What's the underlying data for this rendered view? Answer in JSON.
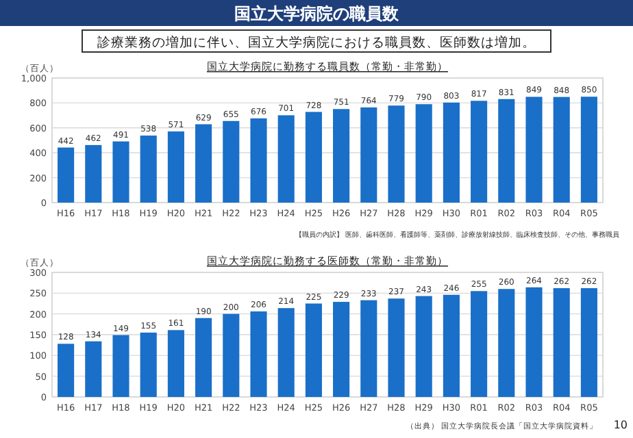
{
  "chart_data": [
    {
      "type": "bar",
      "title": "国立大学病院に勤務する職員数（常勤・非常勤）",
      "ylabel": "（百人）",
      "annotations": [
        "国立大学病院の職員数",
        "診療業務の増加に伴い、国立大学病院における職員数、医師数は増加。",
        "【職員の内訳】 医師、歯科医師、看護師等、薬剤師、診療放射線技師、臨床検査技師、その他、事務職員"
      ],
      "categories": [
        "H16",
        "H17",
        "H18",
        "H19",
        "H20",
        "H21",
        "H22",
        "H23",
        "H24",
        "H25",
        "H26",
        "H27",
        "H28",
        "H29",
        "H30",
        "R01",
        "R02",
        "R03",
        "R04",
        "R05"
      ],
      "values": [
        442,
        462,
        491,
        538,
        571,
        629,
        655,
        676,
        701,
        728,
        751,
        764,
        779,
        790,
        803,
        817,
        831,
        849,
        848,
        850
      ],
      "color": "#1a6fc8",
      "ylim": [
        0,
        1000
      ],
      "yticks": [
        0,
        200,
        400,
        600,
        800,
        {
          "value": 1000,
          "label": "1,000"
        }
      ],
      "grid": "y",
      "data_labels": true
    },
    {
      "type": "bar",
      "title": "国立大学病院に勤務する医師数（常勤・非常勤）",
      "ylabel": "（百人）",
      "annotations": [
        "（出典） 国立大学病院長会議「国立大学病院資料」",
        "10"
      ],
      "categories": [
        "H16",
        "H17",
        "H18",
        "H19",
        "H20",
        "H21",
        "H22",
        "H23",
        "H24",
        "H25",
        "H26",
        "H27",
        "H28",
        "H29",
        "H30",
        "R01",
        "R02",
        "R03",
        "R04",
        "R05"
      ],
      "values": [
        128,
        134,
        149,
        155,
        161,
        190,
        200,
        206,
        214,
        225,
        229,
        233,
        237,
        243,
        246,
        255,
        260,
        264,
        262,
        262
      ],
      "color": "#1a6fc8",
      "ylim": [
        0,
        300
      ],
      "yticks": [
        0,
        50,
        100,
        150,
        200,
        250,
        300
      ],
      "grid": "y",
      "data_labels": true
    }
  ]
}
